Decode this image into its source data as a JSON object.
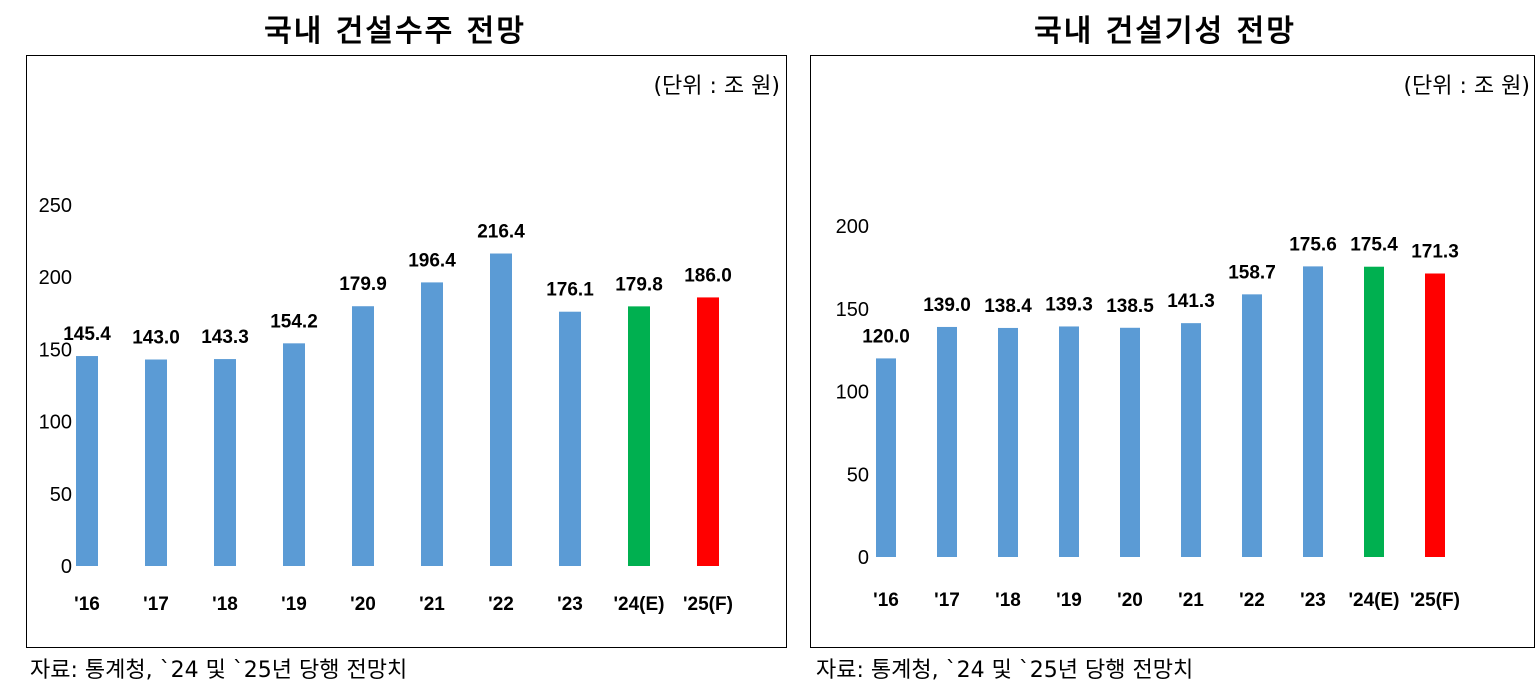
{
  "chart_data": [
    {
      "type": "bar",
      "title": "국내 건설수주 전망",
      "unit_label": "(단위 : 조  원)",
      "source": "자료: 통계청, `24 및 `25년 당행 전망치",
      "categories": [
        "'16",
        "'17",
        "'18",
        "'19",
        "'20",
        "'21",
        "'22",
        "'23",
        "'24(E)",
        "'25(F)"
      ],
      "values": [
        145.4,
        143.0,
        143.3,
        154.2,
        179.9,
        196.4,
        216.4,
        176.1,
        179.8,
        186.0
      ],
      "value_labels": [
        "145.4",
        "143.0",
        "143.3",
        "154.2",
        "179.9",
        "196.4",
        "216.4",
        "176.1",
        "179.8",
        "186.0"
      ],
      "bar_colors": [
        "#5b9bd5",
        "#5b9bd5",
        "#5b9bd5",
        "#5b9bd5",
        "#5b9bd5",
        "#5b9bd5",
        "#5b9bd5",
        "#5b9bd5",
        "#00b050",
        "#ff0000"
      ],
      "yticks": [
        0,
        50,
        100,
        150,
        200,
        250
      ],
      "ylim": [
        0,
        250
      ],
      "grid": false,
      "legend": "none"
    },
    {
      "type": "bar",
      "title": "국내 건설기성 전망",
      "unit_label": "(단위 : 조  원)",
      "source": "자료: 통계청, `24 및 `25년 당행 전망치",
      "categories": [
        "'16",
        "'17",
        "'18",
        "'19",
        "'20",
        "'21",
        "'22",
        "'23",
        "'24(E)",
        "'25(F)"
      ],
      "values": [
        120.0,
        139.0,
        138.4,
        139.3,
        138.5,
        141.3,
        158.7,
        175.6,
        175.4,
        171.3
      ],
      "value_labels": [
        "120.0",
        "139.0",
        "138.4",
        "139.3",
        "138.5",
        "141.3",
        "158.7",
        "175.6",
        "175.4",
        "171.3"
      ],
      "bar_colors": [
        "#5b9bd5",
        "#5b9bd5",
        "#5b9bd5",
        "#5b9bd5",
        "#5b9bd5",
        "#5b9bd5",
        "#5b9bd5",
        "#5b9bd5",
        "#00b050",
        "#ff0000"
      ],
      "yticks": [
        0,
        50,
        100,
        150,
        200
      ],
      "ylim": [
        0,
        200
      ],
      "grid": false,
      "legend": "none"
    }
  ]
}
